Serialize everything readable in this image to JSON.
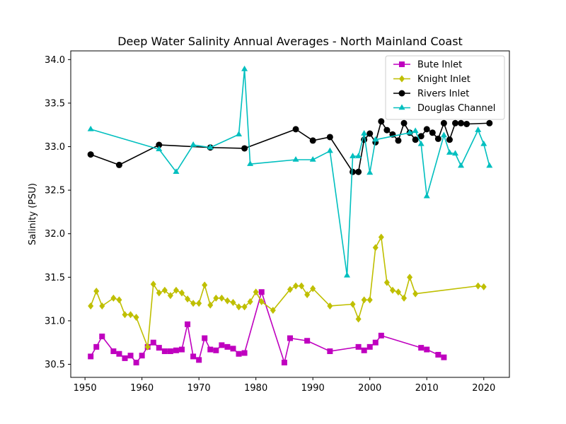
{
  "chart_data": {
    "type": "line",
    "title": "Deep Water Salinity Annual Averages - North Mainland Coast",
    "xlabel": "",
    "ylabel": "Salinity (PSU)",
    "xlim": [
      1947.5,
      2024.5
    ],
    "ylim": [
      30.35,
      34.1
    ],
    "xticks": [
      1950,
      1960,
      1970,
      1980,
      1990,
      2000,
      2010,
      2020
    ],
    "yticks": [
      30.5,
      31.0,
      31.5,
      32.0,
      32.5,
      33.0,
      33.5,
      34.0
    ],
    "xtick_labels": [
      "1950",
      "1960",
      "1970",
      "1980",
      "1990",
      "2000",
      "2010",
      "2020"
    ],
    "ytick_labels": [
      "30.5",
      "31.0",
      "31.5",
      "32.0",
      "32.5",
      "33.0",
      "33.5",
      "34.0"
    ],
    "grid": false,
    "legend_position": "top-right",
    "series": [
      {
        "name": "Bute Inlet",
        "color": "#bf00bf",
        "marker": "square",
        "x": [
          1951,
          1952,
          1953,
          1955,
          1956,
          1957,
          1958,
          1959,
          1960,
          1961,
          1962,
          1963,
          1964,
          1965,
          1966,
          1967,
          1968,
          1969,
          1970,
          1971,
          1972,
          1973,
          1974,
          1975,
          1976,
          1977,
          1978,
          1981,
          1985,
          1986,
          1989,
          1993,
          1998,
          1999,
          2000,
          2001,
          2002,
          2009,
          2010,
          2012,
          2013
        ],
        "y": [
          30.59,
          30.7,
          30.82,
          30.65,
          30.62,
          30.57,
          30.6,
          30.52,
          30.6,
          30.7,
          30.75,
          30.69,
          30.65,
          30.65,
          30.66,
          30.67,
          30.96,
          30.59,
          30.55,
          30.8,
          30.67,
          30.66,
          30.72,
          30.7,
          30.68,
          30.62,
          30.63,
          31.33,
          30.52,
          30.8,
          30.77,
          30.65,
          30.7,
          30.66,
          30.7,
          30.75,
          30.83,
          30.69,
          30.67,
          30.61,
          30.58
        ]
      },
      {
        "name": "Knight Inlet",
        "color": "#bfbf00",
        "marker": "diamond",
        "x": [
          1951,
          1952,
          1953,
          1955,
          1956,
          1957,
          1958,
          1959,
          1961,
          1962,
          1963,
          1964,
          1965,
          1966,
          1967,
          1968,
          1969,
          1970,
          1971,
          1972,
          1973,
          1974,
          1975,
          1976,
          1977,
          1978,
          1979,
          1980,
          1981,
          1983,
          1986,
          1987,
          1988,
          1989,
          1990,
          1993,
          1997,
          1998,
          1999,
          2000,
          2001,
          2002,
          2003,
          2004,
          2005,
          2006,
          2007,
          2008,
          2019,
          2020
        ],
        "y": [
          31.17,
          31.34,
          31.17,
          31.26,
          31.24,
          31.07,
          31.07,
          31.04,
          30.7,
          31.42,
          31.32,
          31.35,
          31.29,
          31.35,
          31.32,
          31.25,
          31.2,
          31.2,
          31.41,
          31.18,
          31.26,
          31.26,
          31.23,
          31.21,
          31.16,
          31.16,
          31.22,
          31.33,
          31.22,
          31.12,
          31.36,
          31.4,
          31.4,
          31.3,
          31.37,
          31.17,
          31.19,
          31.02,
          31.24,
          31.24,
          31.84,
          31.96,
          31.44,
          31.35,
          31.33,
          31.26,
          31.5,
          31.31,
          31.4,
          31.39
        ]
      },
      {
        "name": "Rivers Inlet",
        "color": "#000000",
        "marker": "circle",
        "x": [
          1951,
          1956,
          1963,
          1972,
          1978,
          1987,
          1990,
          1993,
          1997,
          1998,
          1999,
          2000,
          2001,
          2002,
          2003,
          2004,
          2005,
          2006,
          2007,
          2008,
          2009,
          2010,
          2011,
          2012,
          2013,
          2014,
          2015,
          2016,
          2017,
          2021
        ],
        "y": [
          32.91,
          32.79,
          33.02,
          32.99,
          32.98,
          33.2,
          33.07,
          33.11,
          32.71,
          32.71,
          33.08,
          33.15,
          33.05,
          33.29,
          33.19,
          33.14,
          33.07,
          33.27,
          33.16,
          33.08,
          33.12,
          33.2,
          33.16,
          33.09,
          33.27,
          33.08,
          33.27,
          33.27,
          33.26,
          33.27
        ]
      },
      {
        "name": "Douglas Channel",
        "color": "#00bfbf",
        "marker": "triangle",
        "x": [
          1951,
          1963,
          1966,
          1969,
          1972,
          1977,
          1978,
          1979,
          1987,
          1990,
          1993,
          1996,
          1997,
          1998,
          1999,
          2000,
          2001,
          2007,
          2008,
          2009,
          2010,
          2013,
          2014,
          2015,
          2016,
          2019,
          2020,
          2021
        ],
        "y": [
          33.2,
          32.97,
          32.71,
          33.02,
          32.99,
          33.14,
          33.89,
          32.8,
          32.85,
          32.85,
          32.95,
          31.52,
          32.89,
          32.89,
          33.15,
          32.7,
          33.08,
          33.16,
          33.18,
          33.03,
          32.43,
          33.13,
          32.93,
          32.92,
          32.78,
          33.19,
          33.03,
          32.78
        ]
      }
    ]
  }
}
